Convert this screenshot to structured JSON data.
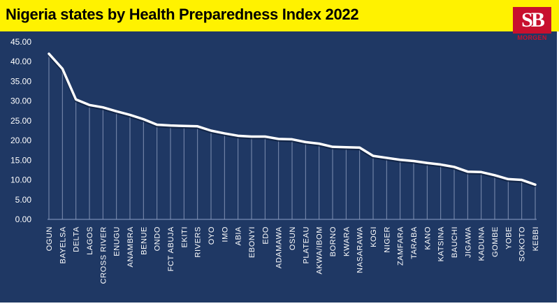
{
  "title": "Nigeria states by Health Preparedness Index 2022",
  "logo": {
    "mark": "SB",
    "text": "MORGEN"
  },
  "colors": {
    "title_bar": "#fff200",
    "plot_background": "#1f3864",
    "line": "#ffffff",
    "logo": "#c8102e"
  },
  "chart_data": {
    "type": "line",
    "title": "Nigeria states by Health Preparedness Index 2022",
    "xlabel": "",
    "ylabel": "",
    "ylim": [
      0,
      45
    ],
    "yticks": [
      "0.00",
      "5.00",
      "10.00",
      "15.00",
      "20.00",
      "25.00",
      "30.00",
      "35.00",
      "40.00",
      "45.00"
    ],
    "grid": false,
    "legend": "none",
    "categories": [
      "OGUN",
      "BAYELSA",
      "DELTA",
      "LAGOS",
      "CROSS RIVER",
      "ENUGU",
      "ANAMBRA",
      "BENUE",
      "ONDO",
      "FCT ABUJA",
      "EKITI",
      "RIVERS",
      "OYO",
      "IMO",
      "ABIA",
      "EBONYI",
      "EDO",
      "ADAMAWA",
      "OSUN",
      "PLATEAU",
      "AKWA/IBOM",
      "BORNO",
      "KWARA",
      "NASARAWA",
      "KOGI",
      "NIGER",
      "ZAMFARA",
      "TARABA",
      "KANO",
      "KATSINA",
      "BAUCHI",
      "JIGAWA",
      "KADUNA",
      "GOMBE",
      "YOBE",
      "SOKOTO",
      "KEBBI"
    ],
    "values": [
      42.0,
      38.2,
      30.4,
      29.0,
      28.4,
      27.4,
      26.5,
      25.4,
      24.0,
      23.8,
      23.7,
      23.6,
      22.5,
      21.8,
      21.2,
      21.0,
      21.0,
      20.4,
      20.3,
      19.6,
      19.2,
      18.4,
      18.3,
      18.2,
      16.1,
      15.6,
      15.1,
      14.8,
      14.3,
      13.9,
      13.3,
      12.1,
      12.0,
      11.2,
      10.2,
      10.0,
      8.8
    ]
  }
}
